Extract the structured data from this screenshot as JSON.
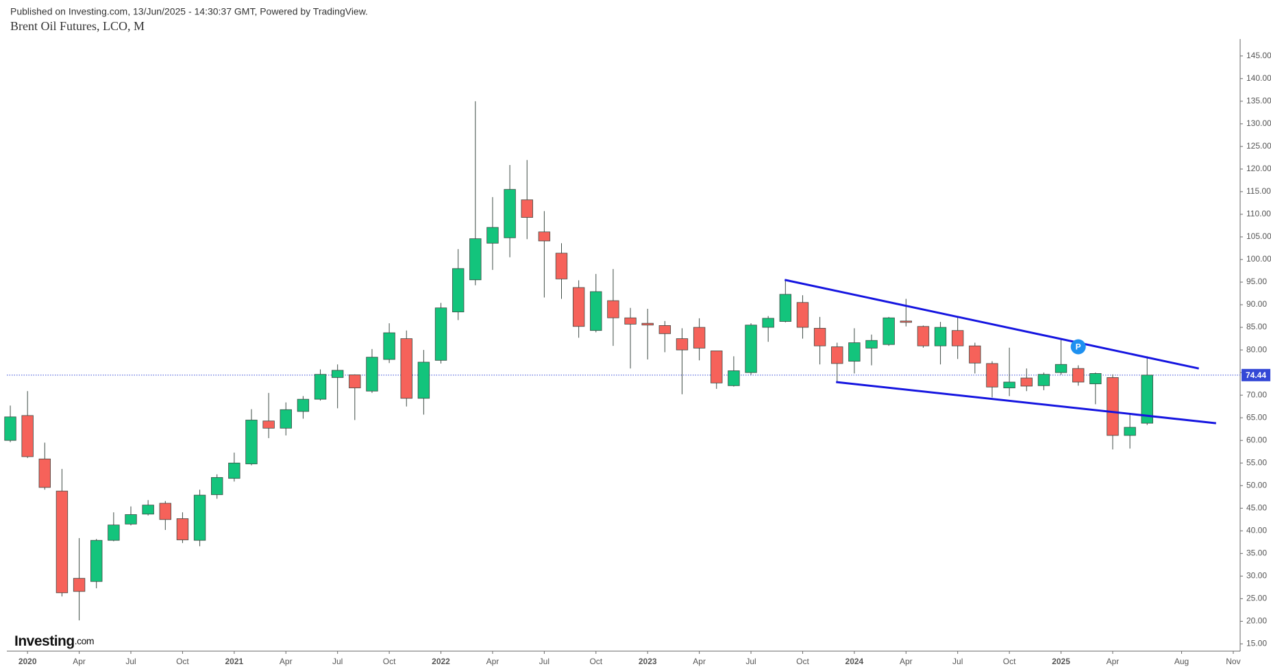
{
  "header": {
    "published": "Published on Investing.com, 13/Jun/2025 - 14:30:37 GMT, Powered by TradingView.",
    "logo": "Investing",
    "logo_suffix": ".com"
  },
  "chart_data": {
    "type": "candlestick",
    "title": "Brent Oil Futures, LCO, M",
    "up_color": "#13c47c",
    "down_color": "#f6625a",
    "open": [
      60.0,
      65.5,
      55.9,
      48.8,
      29.5,
      28.8,
      37.9,
      41.5,
      43.7,
      46.1,
      42.7,
      37.9,
      48.0,
      51.6,
      54.8,
      64.3,
      62.7,
      66.4,
      69.1,
      73.9,
      74.5,
      70.9,
      77.9,
      82.5,
      69.3,
      77.7,
      88.4,
      95.5,
      103.6,
      104.8,
      113.2,
      106.1,
      101.4,
      93.8,
      84.3,
      90.9,
      87.1,
      85.9,
      85.4,
      82.5,
      85.0,
      79.8,
      72.1,
      75.0,
      85.0,
      86.3,
      90.5,
      84.8,
      80.7,
      77.5,
      80.4,
      81.2,
      86.4,
      85.2,
      80.9,
      84.3,
      80.9,
      77.0,
      71.6,
      73.8,
      72.1,
      75.0,
      75.9,
      72.5,
      73.9,
      61.1,
      63.8
    ],
    "high": [
      67.7,
      70.9,
      59.5,
      53.7,
      38.4,
      38.2,
      44.1,
      45.4,
      46.8,
      46.6,
      44.1,
      49.1,
      52.5,
      57.3,
      66.9,
      70.5,
      68.4,
      69.8,
      75.7,
      76.8,
      74.6,
      80.2,
      85.9,
      84.3,
      80.0,
      90.4,
      102.3,
      135.0,
      113.8,
      120.9,
      122.0,
      110.7,
      103.6,
      95.4,
      96.8,
      97.9,
      89.3,
      89.1,
      86.4,
      84.8,
      87.0,
      79.8,
      78.6,
      85.9,
      87.5,
      95.4,
      92.1,
      87.3,
      81.6,
      84.8,
      83.4,
      87.3,
      91.3,
      85.4,
      86.2,
      87.3,
      81.6,
      77.5,
      80.5,
      75.9,
      75.0,
      82.5,
      76.6,
      75.0,
      74.6,
      65.9,
      78.6
    ],
    "low": [
      59.6,
      56.1,
      49.1,
      25.5,
      20.2,
      27.3,
      37.7,
      41.2,
      43.4,
      40.2,
      37.3,
      36.6,
      47.1,
      50.9,
      54.5,
      60.5,
      61.1,
      64.8,
      68.8,
      67.1,
      64.5,
      70.5,
      77.1,
      67.5,
      65.7,
      77.0,
      86.6,
      94.3,
      97.7,
      100.5,
      104.5,
      91.6,
      91.3,
      82.7,
      83.9,
      80.9,
      75.9,
      77.9,
      79.5,
      70.2,
      77.7,
      71.4,
      71.9,
      74.5,
      81.8,
      86.1,
      82.5,
      76.8,
      72.9,
      74.8,
      76.6,
      80.9,
      85.2,
      80.5,
      76.8,
      78.0,
      74.8,
      69.5,
      69.8,
      70.9,
      71.1,
      74.5,
      72.1,
      68.0,
      58.0,
      58.2,
      63.4
    ],
    "close": [
      65.2,
      56.4,
      49.6,
      26.3,
      26.6,
      37.9,
      41.3,
      43.6,
      45.7,
      42.5,
      38.0,
      47.9,
      51.8,
      55.0,
      64.5,
      62.7,
      66.8,
      69.1,
      74.6,
      75.5,
      71.6,
      78.4,
      83.8,
      69.3,
      77.3,
      89.3,
      98.0,
      104.6,
      107.1,
      115.5,
      109.3,
      104.1,
      95.7,
      85.2,
      92.9,
      87.1,
      85.7,
      85.5,
      83.6,
      80.0,
      80.4,
      72.7,
      75.4,
      85.5,
      87.0,
      92.3,
      85.0,
      80.9,
      77.0,
      81.6,
      82.1,
      87.1,
      86.1,
      80.9,
      85.0,
      80.9,
      77.1,
      71.8,
      72.9,
      72.0,
      74.6,
      76.8,
      72.9,
      74.8,
      61.1,
      62.9,
      74.44
    ],
    "last_price": 74.44,
    "last_price_color": "#3448d6",
    "trendlines": [
      {
        "color": "#1515e0",
        "x": [
          44.96,
          69.0
        ],
        "y": [
          95.5,
          75.9
        ]
      },
      {
        "color": "#1515e0",
        "x": [
          47.94,
          70.0
        ],
        "y": [
          72.9,
          63.8
        ]
      }
    ],
    "annotations": [
      {
        "text": "P",
        "x": 62,
        "y": 80.7,
        "color": "#1e90f0"
      }
    ],
    "xlim": [
      -0.2,
      71.4
    ],
    "xticks": [
      {
        "value": 1,
        "label": "2020"
      },
      {
        "value": 4,
        "label": "Apr"
      },
      {
        "value": 7,
        "label": "Jul"
      },
      {
        "value": 10,
        "label": "Oct"
      },
      {
        "value": 13,
        "label": "2021"
      },
      {
        "value": 16,
        "label": "Apr"
      },
      {
        "value": 19,
        "label": "Jul"
      },
      {
        "value": 22,
        "label": "Oct"
      },
      {
        "value": 25,
        "label": "2022"
      },
      {
        "value": 28,
        "label": "Apr"
      },
      {
        "value": 31,
        "label": "Jul"
      },
      {
        "value": 34,
        "label": "Oct"
      },
      {
        "value": 37,
        "label": "2023"
      },
      {
        "value": 40,
        "label": "Apr"
      },
      {
        "value": 43,
        "label": "Jul"
      },
      {
        "value": 46,
        "label": "Oct"
      },
      {
        "value": 49,
        "label": "2024"
      },
      {
        "value": 52,
        "label": "Apr"
      },
      {
        "value": 55,
        "label": "Jul"
      },
      {
        "value": 58,
        "label": "Oct"
      },
      {
        "value": 61,
        "label": "2025"
      },
      {
        "value": 64,
        "label": "Apr"
      },
      {
        "value": 68,
        "label": "Aug"
      },
      {
        "value": 71,
        "label": "Nov"
      }
    ],
    "ylim": [
      13.4,
      148.75
    ],
    "yticks": [
      {
        "value": 15,
        "label": "15.00"
      },
      {
        "value": 20,
        "label": "20.00"
      },
      {
        "value": 25,
        "label": "25.00"
      },
      {
        "value": 30,
        "label": "30.00"
      },
      {
        "value": 35,
        "label": "35.00"
      },
      {
        "value": 40,
        "label": "40.00"
      },
      {
        "value": 45,
        "label": "45.00"
      },
      {
        "value": 50,
        "label": "50.00"
      },
      {
        "value": 55,
        "label": "55.00"
      },
      {
        "value": 60,
        "label": "60.00"
      },
      {
        "value": 65,
        "label": "65.00"
      },
      {
        "value": 70,
        "label": "70.00"
      },
      {
        "value": 75,
        "label": "75.00"
      },
      {
        "value": 80,
        "label": "80.00"
      },
      {
        "value": 85,
        "label": "85.00"
      },
      {
        "value": 90,
        "label": "90.00"
      },
      {
        "value": 95,
        "label": "95.00"
      },
      {
        "value": 100,
        "label": "100.00"
      },
      {
        "value": 105,
        "label": "105.00"
      },
      {
        "value": 110,
        "label": "110.00"
      },
      {
        "value": 115,
        "label": "115.00"
      },
      {
        "value": 120,
        "label": "120.00"
      },
      {
        "value": 125,
        "label": "125.00"
      },
      {
        "value": 130,
        "label": "130.00"
      },
      {
        "value": 135,
        "label": "135.00"
      },
      {
        "value": 140,
        "label": "140.00"
      },
      {
        "value": 145,
        "label": "145.00"
      }
    ]
  }
}
